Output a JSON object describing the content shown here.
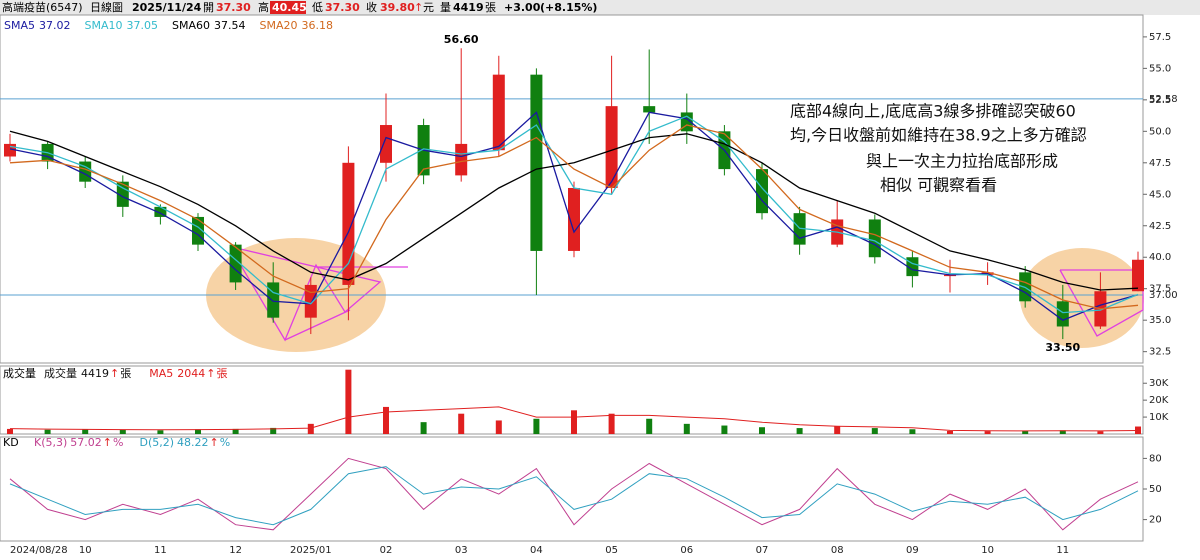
{
  "header": {
    "name": "高端疫苗(6547)",
    "chart_kind": "日線圖",
    "date": "2025/11/24",
    "open_label": "開",
    "open": "37.30",
    "high_label": "高",
    "high": "40.45",
    "low_label": "低",
    "low": "37.30",
    "close_label": "收",
    "close": "39.80",
    "close_arrow": "↑",
    "currency": "元",
    "volume_label": "量",
    "volume": "4419",
    "volume_unit": "張",
    "change": "+3.00",
    "change_pct": "(+8.15%)"
  },
  "chart_data": [
    {
      "type": "candlestick",
      "categories": [
        "2024/08/28",
        null,
        "10",
        null,
        "11",
        null,
        "12",
        null,
        "2025/01",
        null,
        "02",
        null,
        "03",
        null,
        "04",
        null,
        "05",
        null,
        "06",
        null,
        "07",
        null,
        "08",
        null,
        "09",
        null,
        "10",
        null,
        "11",
        null,
        null
      ],
      "open": [
        48.0,
        49.0,
        47.6,
        46.0,
        44.0,
        43.2,
        41.0,
        38.0,
        35.2,
        37.8,
        47.5,
        50.5,
        46.5,
        48.5,
        54.5,
        40.5,
        45.5,
        52.0,
        51.5,
        50.0,
        47.0,
        43.5,
        41.0,
        43.0,
        40.0,
        38.5,
        38.6,
        38.8,
        36.5,
        34.5,
        37.3
      ],
      "high": [
        49.8,
        49.2,
        48.0,
        46.5,
        44.2,
        43.5,
        41.2,
        39.6,
        38.4,
        48.8,
        53.0,
        51.0,
        56.6,
        56.0,
        55.0,
        46.0,
        56.0,
        56.5,
        53.0,
        50.5,
        47.5,
        44.0,
        44.5,
        43.4,
        40.5,
        39.8,
        39.6,
        39.3,
        37.8,
        38.8,
        40.45
      ],
      "low": [
        47.6,
        47.0,
        45.5,
        43.2,
        42.6,
        40.5,
        37.4,
        34.8,
        33.9,
        35.0,
        46.0,
        45.8,
        46.0,
        48.0,
        37.0,
        40.0,
        45.0,
        49.0,
        49.0,
        46.5,
        43.0,
        40.2,
        40.8,
        39.5,
        37.6,
        37.2,
        37.8,
        36.0,
        33.5,
        34.3,
        37.3
      ],
      "close": [
        49.0,
        47.6,
        46.0,
        44.0,
        43.2,
        41.0,
        38.0,
        35.2,
        37.8,
        47.5,
        50.5,
        46.5,
        49.0,
        54.5,
        40.5,
        45.5,
        52.0,
        51.5,
        50.0,
        47.0,
        43.5,
        41.0,
        43.0,
        40.0,
        38.5,
        38.6,
        38.8,
        36.5,
        34.5,
        37.3,
        39.8
      ],
      "up_color": "#e02020",
      "down_color": "#108010",
      "series": [
        {
          "name": "SMA5",
          "color": "#1a1aa0",
          "values": [
            48.6,
            48.0,
            46.6,
            44.8,
            43.5,
            41.8,
            39.0,
            36.5,
            36.3,
            42.0,
            49.5,
            48.5,
            48.0,
            48.8,
            51.5,
            42.0,
            46.0,
            51.5,
            51.0,
            48.5,
            44.5,
            41.5,
            42.4,
            41.0,
            39.0,
            38.6,
            38.7,
            37.2,
            35.0,
            36.2,
            37.02
          ]
        },
        {
          "name": "SMA10",
          "color": "#33bbcc",
          "values": [
            48.8,
            48.3,
            47.2,
            45.5,
            44.0,
            42.4,
            39.8,
            37.2,
            36.3,
            39.5,
            47.0,
            48.6,
            48.2,
            48.5,
            50.5,
            45.5,
            45.0,
            50.0,
            51.2,
            49.2,
            45.5,
            42.3,
            42.0,
            41.3,
            39.5,
            38.7,
            38.6,
            37.6,
            35.6,
            35.8,
            37.05
          ]
        },
        {
          "name": "SMA60",
          "color": "#000000",
          "values": [
            50.0,
            49.2,
            48.0,
            46.8,
            45.6,
            44.2,
            42.5,
            40.5,
            38.8,
            38.2,
            39.5,
            41.5,
            43.5,
            45.5,
            47.0,
            47.5,
            48.5,
            49.5,
            49.8,
            49.0,
            47.5,
            45.5,
            44.5,
            43.5,
            42.0,
            40.5,
            39.8,
            39.0,
            38.0,
            37.4,
            37.54
          ]
        },
        {
          "name": "SMA20",
          "color": "#d2691e",
          "values": [
            47.5,
            47.7,
            47.0,
            45.8,
            44.5,
            43.0,
            40.8,
            38.5,
            37.2,
            37.5,
            43.0,
            47.0,
            47.6,
            48.0,
            49.5,
            47.0,
            45.5,
            48.5,
            50.5,
            49.8,
            47.0,
            43.8,
            42.5,
            41.8,
            40.5,
            39.2,
            38.8,
            38.0,
            36.6,
            35.9,
            36.18
          ]
        }
      ],
      "ylim": [
        31.6,
        59
      ],
      "yticks": [
        32.5,
        {
          "value": 35,
          "label": "35.0"
        },
        37.5,
        {
          "value": 40,
          "label": "40.0"
        },
        42.5,
        {
          "value": 45,
          "label": "45.0"
        },
        47.5,
        {
          "value": 50,
          "label": "50.0"
        },
        52.5,
        {
          "value": 55,
          "label": "55.0"
        },
        57.5
      ],
      "hlines": [
        {
          "value": 52.58,
          "label": "52.58",
          "color": "#5aa0d0"
        },
        {
          "value": 37,
          "label": "37.00",
          "color": "#5aa0d0"
        }
      ],
      "annotations": [
        {
          "value": 56.6,
          "label": "56.60"
        },
        {
          "value": 33.5,
          "label": "33.50"
        }
      ],
      "notes": [
        "底部4線向上,底底高3線多排確認突破60",
        "均,今日收盤前如維持在38.9之上多方確認",
        "與上一次主力拉抬底部形成",
        "相似  可觀察看看"
      ]
    },
    {
      "type": "bar",
      "title": "成交量",
      "unit": "張",
      "arrow": "↑",
      "series": [
        {
          "name": "成交量",
          "values": [
            3000,
            2500,
            2600,
            2400,
            2200,
            2800,
            3000,
            3600,
            6000,
            38000,
            16000,
            7000,
            12000,
            8000,
            9000,
            14000,
            12000,
            9000,
            6000,
            5000,
            4000,
            3500,
            4500,
            3500,
            2800,
            1800,
            1700,
            1900,
            2200,
            1600,
            4419
          ]
        },
        {
          "name": "MA5",
          "color": "#e02020",
          "values": [
            3200,
            2900,
            2700,
            2600,
            2500,
            2600,
            2700,
            3000,
            3500,
            10000,
            13000,
            14000,
            15000,
            16000,
            10000,
            10000,
            11000,
            11000,
            10000,
            9000,
            7000,
            5500,
            4600,
            4200,
            3700,
            2100,
            1900,
            1850,
            1900,
            1850,
            2044
          ]
        }
      ],
      "ylim": [
        0,
        39000
      ],
      "yticks": [
        {
          "value": 10000,
          "label": "10K"
        },
        {
          "value": 20000,
          "label": "20K"
        },
        {
          "value": 30000,
          "label": "30K"
        }
      ]
    },
    {
      "type": "line",
      "title": "KD",
      "unit": "%",
      "arrow": "↑",
      "series": [
        {
          "name": "K(5,3)",
          "color": "#c04090",
          "values": [
            60,
            30,
            20,
            35,
            25,
            40,
            15,
            10,
            45,
            80,
            70,
            30,
            60,
            45,
            70,
            15,
            50,
            75,
            55,
            35,
            15,
            30,
            70,
            35,
            20,
            45,
            30,
            50,
            10,
            40,
            57.02
          ]
        },
        {
          "name": "D(5,2)",
          "color": "#30a0c0",
          "values": [
            55,
            40,
            25,
            30,
            30,
            35,
            22,
            15,
            30,
            65,
            72,
            45,
            52,
            50,
            62,
            30,
            40,
            65,
            60,
            42,
            22,
            25,
            55,
            45,
            28,
            38,
            35,
            42,
            20,
            30,
            48.22
          ]
        }
      ],
      "ylim": [
        0,
        100
      ],
      "yticks": [
        20,
        50,
        80
      ]
    }
  ]
}
